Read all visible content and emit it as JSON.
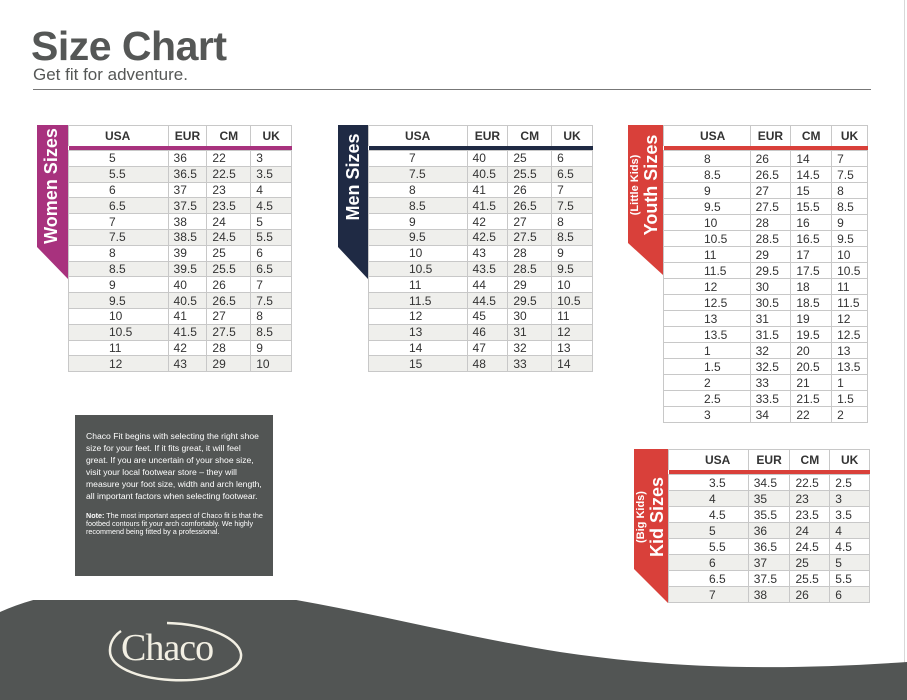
{
  "header": {
    "title": "Size Chart",
    "subtitle": "Get fit for adventure."
  },
  "colors": {
    "women": "#A8327E",
    "men": "#1F2A44",
    "youth": "#D9403A",
    "kid": "#D9403A",
    "info_box": "#525554",
    "footer": "#525554",
    "stripe": "#EFEFEC"
  },
  "tables": {
    "women": {
      "label": "Women Sizes",
      "sublabel": "",
      "columns": [
        "USA",
        "EUR",
        "CM",
        "UK"
      ],
      "rows": [
        [
          "5",
          "36",
          "22",
          "3"
        ],
        [
          "5.5",
          "36.5",
          "22.5",
          "3.5"
        ],
        [
          "6",
          "37",
          "23",
          "4"
        ],
        [
          "6.5",
          "37.5",
          "23.5",
          "4.5"
        ],
        [
          "7",
          "38",
          "24",
          "5"
        ],
        [
          "7.5",
          "38.5",
          "24.5",
          "5.5"
        ],
        [
          "8",
          "39",
          "25",
          "6"
        ],
        [
          "8.5",
          "39.5",
          "25.5",
          "6.5"
        ],
        [
          "9",
          "40",
          "26",
          "7"
        ],
        [
          "9.5",
          "40.5",
          "26.5",
          "7.5"
        ],
        [
          "10",
          "41",
          "27",
          "8"
        ],
        [
          "10.5",
          "41.5",
          "27.5",
          "8.5"
        ],
        [
          "11",
          "42",
          "28",
          "9"
        ],
        [
          "12",
          "43",
          "29",
          "10"
        ]
      ]
    },
    "men": {
      "label": "Men Sizes",
      "sublabel": "",
      "columns": [
        "USA",
        "EUR",
        "CM",
        "UK"
      ],
      "rows": [
        [
          "7",
          "40",
          "25",
          "6"
        ],
        [
          "7.5",
          "40.5",
          "25.5",
          "6.5"
        ],
        [
          "8",
          "41",
          "26",
          "7"
        ],
        [
          "8.5",
          "41.5",
          "26.5",
          "7.5"
        ],
        [
          "9",
          "42",
          "27",
          "8"
        ],
        [
          "9.5",
          "42.5",
          "27.5",
          "8.5"
        ],
        [
          "10",
          "43",
          "28",
          "9"
        ],
        [
          "10.5",
          "43.5",
          "28.5",
          "9.5"
        ],
        [
          "11",
          "44",
          "29",
          "10"
        ],
        [
          "11.5",
          "44.5",
          "29.5",
          "10.5"
        ],
        [
          "12",
          "45",
          "30",
          "11"
        ],
        [
          "13",
          "46",
          "31",
          "12"
        ],
        [
          "14",
          "47",
          "32",
          "13"
        ],
        [
          "15",
          "48",
          "33",
          "14"
        ]
      ]
    },
    "youth": {
      "label": "Youth Sizes",
      "sublabel": "(Little Kids)",
      "columns": [
        "USA",
        "EUR",
        "CM",
        "UK"
      ],
      "rows": [
        [
          "8",
          "26",
          "14",
          "7"
        ],
        [
          "8.5",
          "26.5",
          "14.5",
          "7.5"
        ],
        [
          "9",
          "27",
          "15",
          "8"
        ],
        [
          "9.5",
          "27.5",
          "15.5",
          "8.5"
        ],
        [
          "10",
          "28",
          "16",
          "9"
        ],
        [
          "10.5",
          "28.5",
          "16.5",
          "9.5"
        ],
        [
          "11",
          "29",
          "17",
          "10"
        ],
        [
          "11.5",
          "29.5",
          "17.5",
          "10.5"
        ],
        [
          "12",
          "30",
          "18",
          "11"
        ],
        [
          "12.5",
          "30.5",
          "18.5",
          "11.5"
        ],
        [
          "13",
          "31",
          "19",
          "12"
        ],
        [
          "13.5",
          "31.5",
          "19.5",
          "12.5"
        ],
        [
          "1",
          "32",
          "20",
          "13"
        ],
        [
          "1.5",
          "32.5",
          "20.5",
          "13.5"
        ],
        [
          "2",
          "33",
          "21",
          "1"
        ],
        [
          "2.5",
          "33.5",
          "21.5",
          "1.5"
        ],
        [
          "3",
          "34",
          "22",
          "2"
        ]
      ]
    },
    "kid": {
      "label": "Kid Sizes",
      "sublabel": "(Big Kids)",
      "columns": [
        "USA",
        "EUR",
        "CM",
        "UK"
      ],
      "rows": [
        [
          "3.5",
          "34.5",
          "22.5",
          "2.5"
        ],
        [
          "4",
          "35",
          "23",
          "3"
        ],
        [
          "4.5",
          "35.5",
          "23.5",
          "3.5"
        ],
        [
          "5",
          "36",
          "24",
          "4"
        ],
        [
          "5.5",
          "36.5",
          "24.5",
          "4.5"
        ],
        [
          "6",
          "37",
          "25",
          "5"
        ],
        [
          "6.5",
          "37.5",
          "25.5",
          "5.5"
        ],
        [
          "7",
          "38",
          "26",
          "6"
        ]
      ]
    }
  },
  "info": {
    "main_text": "Chaco Fit begins with selecting the right shoe size for your feet. If it fits great, it will feel great. If you are uncertain of your shoe size, visit your local footwear store – they will measure your foot size, width and arch length, all important factors when selecting footwear.",
    "note_label": "Note:",
    "note_text": " The most important aspect of Chaco fit is that the footbed contours fit your arch comfortably. We highly recommend being fitted by a professional."
  },
  "footer": {
    "logo_text": "Chaco"
  }
}
